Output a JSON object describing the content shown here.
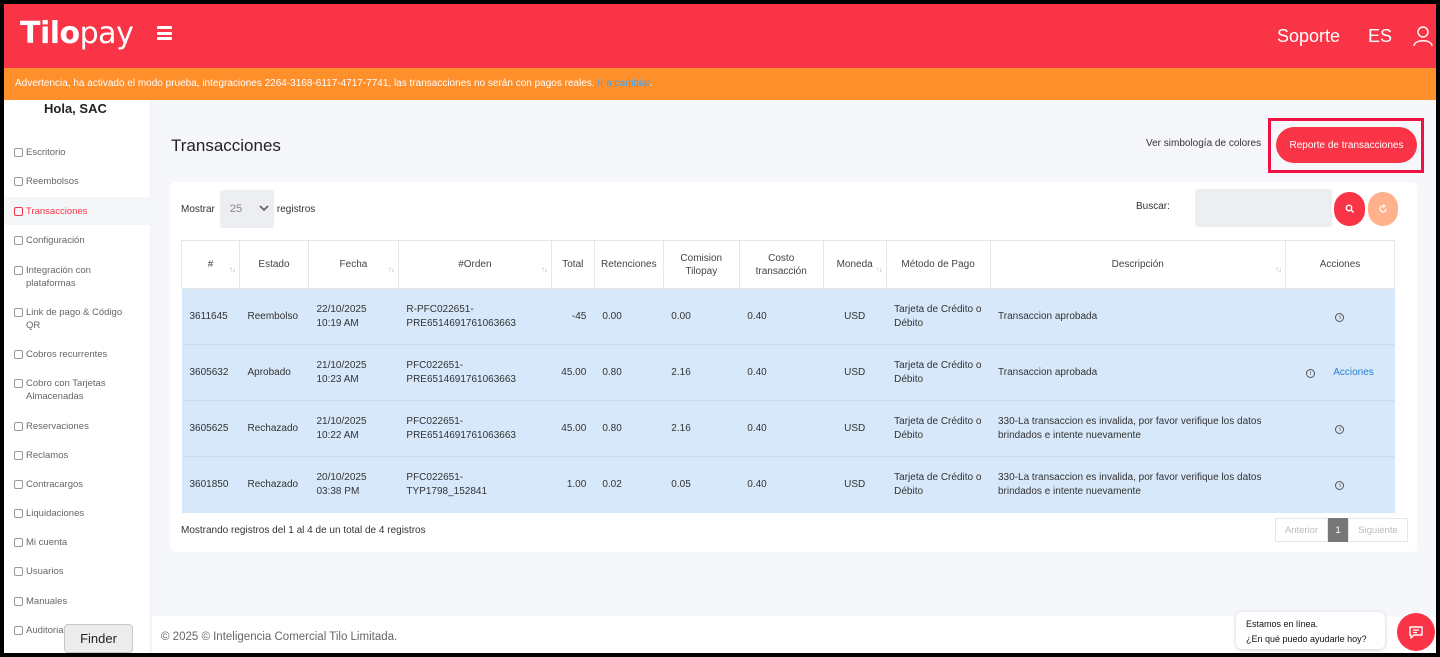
{
  "brand": {
    "logo_bold": "Tilo",
    "logo_light": "pay"
  },
  "header": {
    "support": "Soporte",
    "language": "ES"
  },
  "warning": {
    "text": "Advertencia, ha activado el modo prueba, integraciones 2264-3168-6117-4717-7741, las transacciones no serán con pagos reales.",
    "link": "Ir a cambiar",
    "suffix": "."
  },
  "sidebar": {
    "greeting": "Hola, SAC",
    "items": [
      {
        "label": "Escritorio"
      },
      {
        "label": "Reembolsos"
      },
      {
        "label": "Transacciones"
      },
      {
        "label": "Configuración"
      },
      {
        "label": "Integración con plataformas"
      },
      {
        "label": "Link de pago & Código QR"
      },
      {
        "label": "Cobros recurrentes"
      },
      {
        "label": "Cobro con Tarjetas Almacenadas"
      },
      {
        "label": "Reservaciones"
      },
      {
        "label": "Reclamos"
      },
      {
        "label": "Contracargos"
      },
      {
        "label": "Liquidaciones"
      },
      {
        "label": "Mi cuenta"
      },
      {
        "label": "Usuarios"
      },
      {
        "label": "Manuales"
      },
      {
        "label": "Auditoria"
      }
    ]
  },
  "page": {
    "title": "Transacciones",
    "legend_link": "Ver simbología de colores",
    "report_button": "Reporte de transacciones"
  },
  "filters": {
    "show_label": "Mostrar",
    "page_size": "25",
    "records_label": "registros",
    "search_label": "Buscar:"
  },
  "table": {
    "headers": [
      "#",
      "Estado",
      "Fecha",
      "#Orden",
      "Total",
      "Retenciones",
      "Comision Tilopay",
      "Costo transacción",
      "Moneda",
      "Método de Pago",
      "Descripción",
      "Acciones"
    ],
    "rows": [
      {
        "id": "3611645",
        "status": "Reembolso",
        "date": "22/10/2025 10:19 AM",
        "order": "R-PFC022651-PRE6514691761063663",
        "total": "-45",
        "retentions": "0.00",
        "commission": "0.00",
        "cost": "0.40",
        "currency": "USD",
        "method": "Tarjeta de Crédito o Débito",
        "description": "Transaccion aprobada",
        "action": ""
      },
      {
        "id": "3605632",
        "status": "Aprobado",
        "date": "21/10/2025 10:23 AM",
        "order": "PFC022651-PRE6514691761063663",
        "total": "45.00",
        "retentions": "0.80",
        "commission": "2.16",
        "cost": "0.40",
        "currency": "USD",
        "method": "Tarjeta de Crédito o Débito",
        "description": "Transaccion aprobada",
        "action": "Acciones"
      },
      {
        "id": "3605625",
        "status": "Rechazado",
        "date": "21/10/2025 10:22 AM",
        "order": "PFC022651-PRE6514691761063663",
        "total": "45.00",
        "retentions": "0.80",
        "commission": "2.16",
        "cost": "0.40",
        "currency": "USD",
        "method": "Tarjeta de Crédito o Débito",
        "description": "330-La transaccion es invalida, por favor verifique los datos brindados e intente nuevamente",
        "action": ""
      },
      {
        "id": "3601850",
        "status": "Rechazado",
        "date": "20/10/2025 03:38 PM",
        "order": "PFC022651-TYP1798_152841",
        "total": "1.00",
        "retentions": "0.02",
        "commission": "0.05",
        "cost": "0.40",
        "currency": "USD",
        "method": "Tarjeta de Crédito o Débito",
        "description": "330-La transaccion es invalida, por favor verifique los datos brindados e intente nuevamente",
        "action": ""
      }
    ]
  },
  "pagination": {
    "info": "Mostrando registros del 1 al 4 de un total de 4 registros",
    "prev": "Anterior",
    "current": "1",
    "next": "Siguiente"
  },
  "footer": {
    "copyright": "© 2025 © Inteligencia Comercial Tilo Limitada."
  },
  "dock": {
    "finder": "Finder"
  },
  "chat": {
    "line1": "Estamos en línea.",
    "line2": "¿En qué puedo ayudarle hoy?"
  },
  "colors": {
    "brand": "#f93446",
    "warning": "#ff8f2b",
    "row_bg": "#d6e8fa",
    "highlight": "#ee1144"
  },
  "icons": [
    "hamburger-icon",
    "user-icon",
    "chevron-down-icon",
    "search-icon",
    "refresh-icon",
    "sort-icon",
    "info-icon",
    "chat-icon"
  ]
}
